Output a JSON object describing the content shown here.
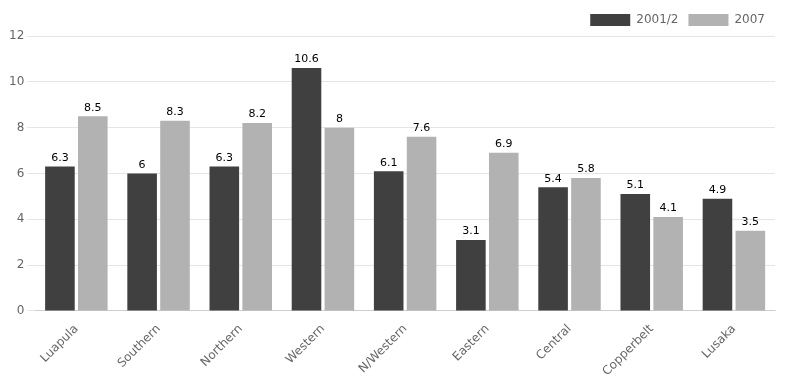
{
  "chart_data": {
    "type": "bar",
    "categories": [
      "Luapula",
      "Southern",
      "Northern",
      "Western",
      "N/Western",
      "Eastern",
      "Central",
      "Copperbelt",
      "Lusaka"
    ],
    "series": [
      {
        "name": "2001/2",
        "color": "#404040",
        "values": [
          6.3,
          6.0,
          6.3,
          10.6,
          6.1,
          3.1,
          5.4,
          5.1,
          4.9
        ]
      },
      {
        "name": "2007",
        "color": "#b2b2b2",
        "values": [
          8.5,
          8.3,
          8.2,
          8.0,
          7.6,
          6.9,
          5.8,
          4.1,
          3.5
        ]
      }
    ],
    "ylim": [
      0,
      12
    ],
    "yticks": [
      0,
      2,
      4,
      6,
      8,
      10,
      12
    ],
    "grid": true,
    "legend": "upper right",
    "data_labels": true
  }
}
